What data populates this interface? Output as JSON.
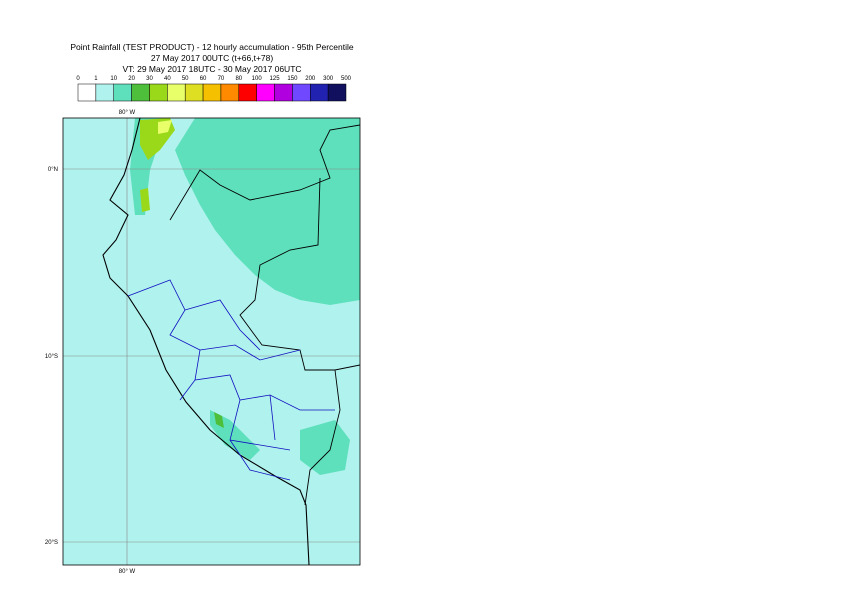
{
  "header": {
    "title_lines": [
      "Point Rainfall (TEST PRODUCT) - 12 hourly accumulation - 95th Percentile",
      "27 May 2017 00UTC (t+66,t+78)",
      "VT: 29 May 2017 18UTC - 30 May 2017 06UTC"
    ]
  },
  "legend": {
    "labels": [
      0,
      1,
      10,
      20,
      30,
      40,
      50,
      60,
      70,
      80,
      100,
      125,
      150,
      200,
      300,
      500
    ],
    "colors": [
      "#ffffff",
      "#b0f2ee",
      "#5fe0bc",
      "#4dbf3a",
      "#9ad81a",
      "#e8ff6a",
      "#dede22",
      "#f5c000",
      "#ff8a00",
      "#ff0000",
      "#ff00ff",
      "#b000e0",
      "#7048ff",
      "#2222b0",
      "#10105e"
    ]
  },
  "map": {
    "lon_labels": [
      "80° W",
      "80° W"
    ],
    "lat_labels": [
      "0°N",
      "10°S",
      "20°S"
    ]
  }
}
